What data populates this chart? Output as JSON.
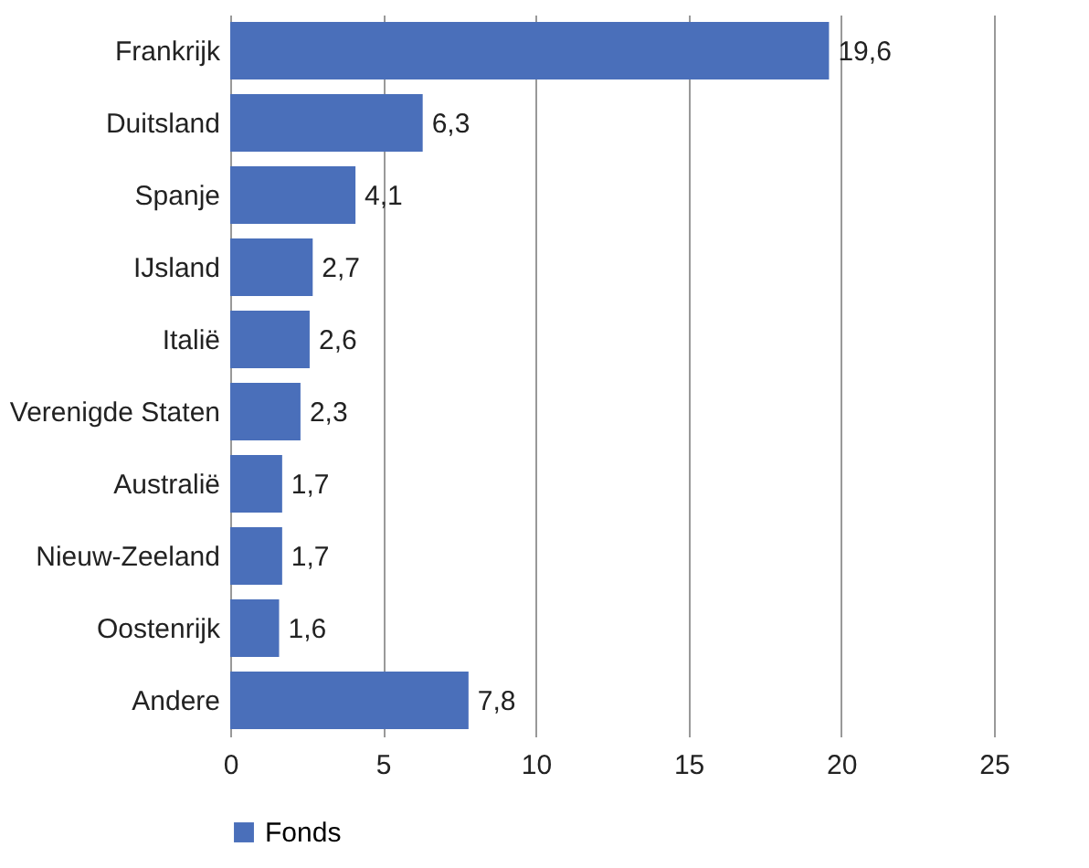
{
  "chart_data": {
    "type": "bar",
    "orientation": "horizontal",
    "categories": [
      "Frankrijk",
      "Duitsland",
      "Spanje",
      "IJsland",
      "Italië",
      "Verenigde Staten",
      "Australië",
      "Nieuw-Zeeland",
      "Oostenrijk",
      "Andere"
    ],
    "series": [
      {
        "name": "Fonds",
        "color": "#4a6fba",
        "values": [
          19.6,
          6.3,
          4.1,
          2.7,
          2.6,
          2.3,
          1.7,
          1.7,
          1.6,
          7.8
        ],
        "value_labels": [
          "19,6",
          "6,3",
          "4,1",
          "2,7",
          "2,6",
          "2,3",
          "1,7",
          "1,7",
          "1,6",
          "7,8"
        ]
      }
    ],
    "xlim": [
      0,
      25
    ],
    "xticks": [
      0,
      5,
      10,
      15,
      20,
      25
    ],
    "grid": "x",
    "legend": "bottom"
  }
}
